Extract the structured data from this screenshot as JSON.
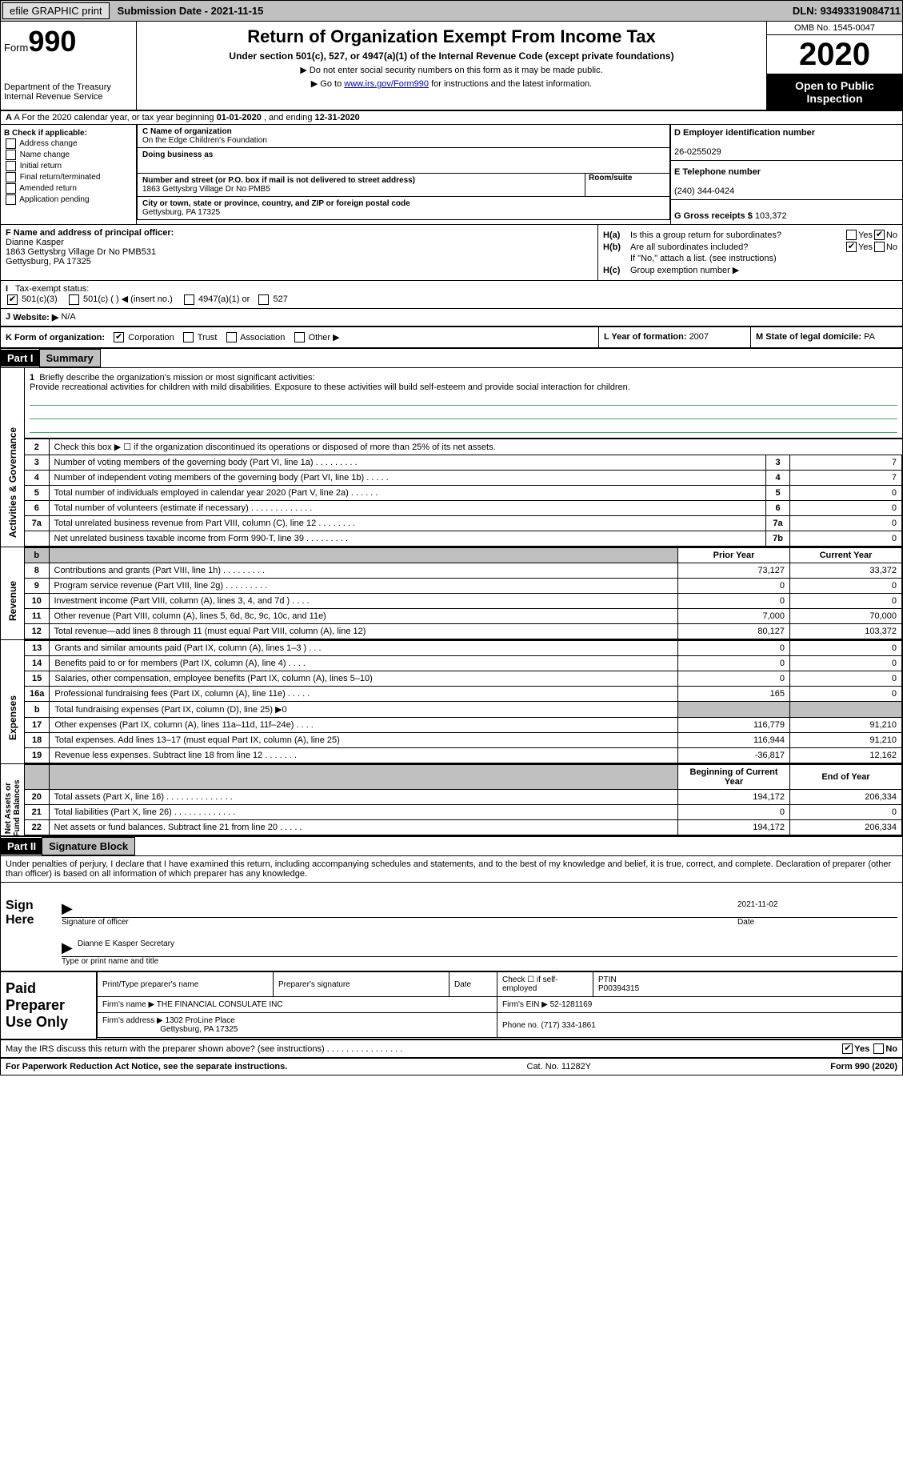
{
  "topbar": {
    "efile": "efile GRAPHIC print",
    "submission": "Submission Date - 2021-11-15",
    "dln": "DLN: 93493319084711"
  },
  "header": {
    "form_prefix": "Form",
    "form_num": "990",
    "dept": "Department of the Treasury\nInternal Revenue Service",
    "title": "Return of Organization Exempt From Income Tax",
    "subtitle": "Under section 501(c), 527, or 4947(a)(1) of the Internal Revenue Code (except private foundations)",
    "note1": "▶ Do not enter social security numbers on this form as it may be made public.",
    "note2_pre": "▶ Go to ",
    "note2_link": "www.irs.gov/Form990",
    "note2_post": " for instructions and the latest information.",
    "omb": "OMB No. 1545-0047",
    "year": "2020",
    "open": "Open to Public Inspection"
  },
  "row_a": {
    "text_pre": "A For the 2020 calendar year, or tax year beginning ",
    "begin": "01-01-2020",
    "mid": " , and ending ",
    "end": "12-31-2020"
  },
  "col_b": {
    "title": "B Check if applicable:",
    "opts": [
      "Address change",
      "Name change",
      "Initial return",
      "Final return/terminated",
      "Amended return",
      "Application pending"
    ]
  },
  "box_c": {
    "name_lab": "C Name of organization",
    "name": "On the Edge Children's Foundation",
    "dba_lab": "Doing business as",
    "addr_lab": "Number and street (or P.O. box if mail is not delivered to street address)",
    "suite_lab": "Room/suite",
    "addr": "1863 Gettysbrg Village Dr No PMB5",
    "city_lab": "City or town, state or province, country, and ZIP or foreign postal code",
    "city": "Gettysburg, PA  17325"
  },
  "box_d": {
    "lab": "D Employer identification number",
    "val": "26-0255029"
  },
  "box_e": {
    "lab": "E Telephone number",
    "val": "(240) 344-0424"
  },
  "box_g": {
    "lab": "G Gross receipts $ ",
    "val": "103,372"
  },
  "box_f": {
    "lab": "F  Name and address of principal officer:",
    "name": "Dianne Kasper",
    "addr1": "1863 Gettysbrg Village Dr No PMB531",
    "addr2": "Gettysburg, PA  17325"
  },
  "box_h": {
    "a_lab": "H(a)",
    "a_q": "Is this a group return for subordinates?",
    "b_lab": "H(b)",
    "b_q": "Are all subordinates included?",
    "b_note": "If \"No,\" attach a list. (see instructions)",
    "c_lab": "H(c)",
    "c_q": "Group exemption number ▶"
  },
  "row_i": {
    "lab": "I",
    "text": "Tax-exempt status:",
    "o1": "501(c)(3)",
    "o2": "501(c) (   ) ◀ (insert no.)",
    "o3": "4947(a)(1) or",
    "o4": "527"
  },
  "row_j": {
    "lab": "J",
    "text": "Website: ▶",
    "val": "N/A"
  },
  "row_k": {
    "lab": "K Form of organization:",
    "o1": "Corporation",
    "o2": "Trust",
    "o3": "Association",
    "o4": "Other ▶"
  },
  "row_l": {
    "lab": "L Year of formation: ",
    "val": "2007"
  },
  "row_m": {
    "lab": "M State of legal domicile: ",
    "val": "PA"
  },
  "part1": {
    "num": "Part I",
    "title": "Summary"
  },
  "vtabs": {
    "gov": "Activities & Governance",
    "rev": "Revenue",
    "exp": "Expenses",
    "net": "Net Assets or\nFund Balances"
  },
  "mission": {
    "num": "1",
    "lab": "Briefly describe the organization's mission or most significant activities:",
    "text": "Provide recreational activities for children with mild disabilities. Exposure to these activities will build self-esteem and provide social interaction for children."
  },
  "gov_rows": [
    {
      "n": "2",
      "d": "Check this box ▶ ☐  if the organization discontinued its operations or disposed of more than 25% of its net assets."
    },
    {
      "n": "3",
      "d": "Number of voting members of the governing body (Part VI, line 1a)  .    .    .    .    .    .    .    .    .",
      "r": "3",
      "v": "7"
    },
    {
      "n": "4",
      "d": "Number of independent voting members of the governing body (Part VI, line 1b)  .    .    .    .    .",
      "r": "4",
      "v": "7"
    },
    {
      "n": "5",
      "d": "Total number of individuals employed in calendar year 2020 (Part V, line 2a)  .    .    .    .    .    .",
      "r": "5",
      "v": "0"
    },
    {
      "n": "6",
      "d": "Total number of volunteers (estimate if necessary)  .    .    .    .    .    .    .    .    .    .    .    .    .",
      "r": "6",
      "v": "0"
    },
    {
      "n": "7a",
      "d": "Total unrelated business revenue from Part VIII, column (C), line 12  .    .    .    .    .    .    .    .",
      "r": "7a",
      "v": "0"
    },
    {
      "n": "",
      "d": "Net unrelated business taxable income from Form 990-T, line 39  .    .    .    .    .    .    .    .    .",
      "r": "7b",
      "v": "0"
    }
  ],
  "col_hdr": {
    "prior": "Prior Year",
    "current": "Current Year",
    "begin": "Beginning of Current Year",
    "end": "End of Year"
  },
  "rev_rows": [
    {
      "n": "8",
      "d": "Contributions and grants (Part VIII, line 1h)  .    .    .    .    .    .    .    .    .",
      "p": "73,127",
      "c": "33,372"
    },
    {
      "n": "9",
      "d": "Program service revenue (Part VIII, line 2g)  .    .    .    .    .    .    .    .    .",
      "p": "0",
      "c": "0"
    },
    {
      "n": "10",
      "d": "Investment income (Part VIII, column (A), lines 3, 4, and 7d )  .    .    .    .",
      "p": "0",
      "c": "0"
    },
    {
      "n": "11",
      "d": "Other revenue (Part VIII, column (A), lines 5, 6d, 8c, 9c, 10c, and 11e)",
      "p": "7,000",
      "c": "70,000"
    },
    {
      "n": "12",
      "d": "Total revenue—add lines 8 through 11 (must equal Part VIII, column (A), line 12)",
      "p": "80,127",
      "c": "103,372"
    }
  ],
  "exp_rows": [
    {
      "n": "13",
      "d": "Grants and similar amounts paid (Part IX, column (A), lines 1–3 )  .    .    .",
      "p": "0",
      "c": "0"
    },
    {
      "n": "14",
      "d": "Benefits paid to or for members (Part IX, column (A), line 4)  .    .    .    .",
      "p": "0",
      "c": "0"
    },
    {
      "n": "15",
      "d": "Salaries, other compensation, employee benefits (Part IX, column (A), lines 5–10)",
      "p": "0",
      "c": "0"
    },
    {
      "n": "16a",
      "d": "Professional fundraising fees (Part IX, column (A), line 11e)  .    .    .    .    .",
      "p": "165",
      "c": "0"
    },
    {
      "n": "b",
      "d": "Total fundraising expenses (Part IX, column (D), line 25) ▶0",
      "grey": true
    },
    {
      "n": "17",
      "d": "Other expenses (Part IX, column (A), lines 11a–11d, 11f–24e)  .    .    .    .",
      "p": "116,779",
      "c": "91,210"
    },
    {
      "n": "18",
      "d": "Total expenses. Add lines 13–17 (must equal Part IX, column (A), line 25)",
      "p": "116,944",
      "c": "91,210"
    },
    {
      "n": "19",
      "d": "Revenue less expenses. Subtract line 18 from line 12  .    .    .    .    .    .    .",
      "p": "-36,817",
      "c": "12,162"
    }
  ],
  "net_rows": [
    {
      "n": "20",
      "d": "Total assets (Part X, line 16)  .    .    .    .    .    .    .    .    .    .    .    .    .    .",
      "p": "194,172",
      "c": "206,334"
    },
    {
      "n": "21",
      "d": "Total liabilities (Part X, line 26)  .    .    .    .    .    .    .    .    .    .    .    .    .",
      "p": "0",
      "c": "0"
    },
    {
      "n": "22",
      "d": "Net assets or fund balances. Subtract line 21 from line 20  .    .    .    .    .",
      "p": "194,172",
      "c": "206,334"
    }
  ],
  "part2": {
    "num": "Part II",
    "title": "Signature Block"
  },
  "sig_decl": "Under penalties of perjury, I declare that I have examined this return, including accompanying schedules and statements, and to the best of my knowledge and belief, it is true, correct, and complete. Declaration of preparer (other than officer) is based on all information of which preparer has any knowledge.",
  "sign": {
    "lab": "Sign Here",
    "sig_of": "Signature of officer",
    "date": "2021-11-02",
    "date_lab": "Date",
    "name": "Dianne E Kasper Secretary",
    "name_lab": "Type or print name and title"
  },
  "ppu": {
    "lab": "Paid Preparer Use Only",
    "h1": "Print/Type preparer's name",
    "h2": "Preparer's signature",
    "h3": "Date",
    "h4_pre": "Check ☐ if self-employed",
    "h5": "PTIN",
    "ptin": "P00394315",
    "firm_lab": "Firm's name    ▶",
    "firm": "THE FINANCIAL CONSULATE INC",
    "ein_lab": "Firm's EIN ▶",
    "ein": "52-1281169",
    "addr_lab": "Firm's address ▶",
    "addr1": "1302 ProLine Place",
    "addr2": "Gettysburg, PA  17325",
    "phone_lab": "Phone no. ",
    "phone": "(717) 334-1861"
  },
  "discuss": {
    "q": "May the IRS discuss this return with the preparer shown above? (see instructions)  .    .    .    .    .    .    .    .    .    .    .    .    .    .    .    .",
    "yes": "Yes",
    "no": "No"
  },
  "footer": {
    "left": "For Paperwork Reduction Act Notice, see the separate instructions.",
    "mid": "Cat. No. 11282Y",
    "right": "Form 990 (2020)"
  }
}
